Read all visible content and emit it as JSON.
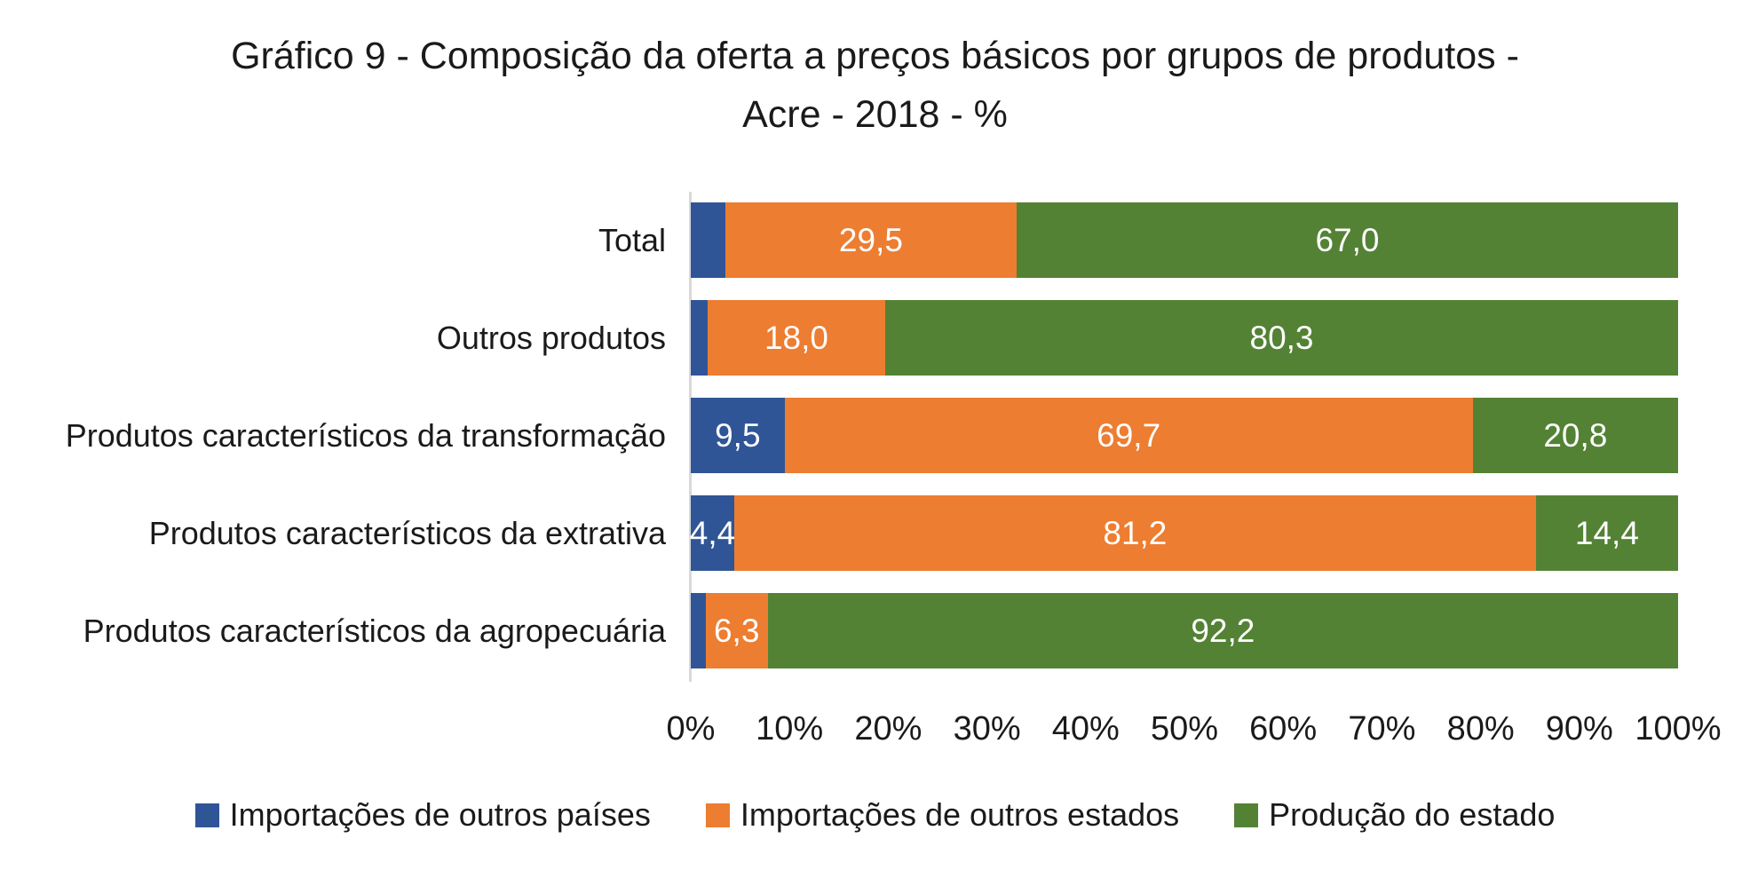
{
  "title": {
    "lines": [
      "Gráfico 9 - Composição da oferta a preços básicos por grupos de produtos -",
      "Acre - 2018 - %"
    ]
  },
  "colors": {
    "imports_other_countries": "#2F5597",
    "imports_other_states": "#ED7D31",
    "state_production": "#548235",
    "axis_line": "#D9D9D9",
    "text": "#1a1a1a",
    "bar_label_text": "#ffffff"
  },
  "chart_data": {
    "type": "bar",
    "orientation": "horizontal",
    "stacked": true,
    "title": "Gráfico 9 - Composição da oferta a preços básicos por grupos de produtos - Acre - 2018 - %",
    "unit": "%",
    "xlim": [
      0,
      100
    ],
    "grid": false,
    "legend_position": "bottom",
    "x_ticks": [
      "0%",
      "10%",
      "20%",
      "30%",
      "40%",
      "50%",
      "60%",
      "70%",
      "80%",
      "90%",
      "100%"
    ],
    "categories": [
      "Total",
      "Outros produtos",
      "Produtos característicos da transformação",
      "Produtos característicos da extrativa",
      "Produtos característicos da agropecuária"
    ],
    "series": [
      {
        "name": "Importações de outros países",
        "values": [
          3.5,
          1.7,
          9.5,
          4.4,
          1.5
        ]
      },
      {
        "name": "Importações de outros estados",
        "values": [
          29.5,
          18.0,
          69.7,
          81.2,
          6.3
        ]
      },
      {
        "name": "Produção do estado",
        "values": [
          67.0,
          80.3,
          20.8,
          14.4,
          92.2
        ]
      }
    ]
  },
  "rows": [
    {
      "label": "Total",
      "segments": [
        {
          "w": 3.5,
          "text": ""
        },
        {
          "w": 29.5,
          "text": "29,5"
        },
        {
          "w": 67.0,
          "text": "67,0"
        }
      ]
    },
    {
      "label": "Outros produtos",
      "segments": [
        {
          "w": 1.7,
          "text": ""
        },
        {
          "w": 18.0,
          "text": "18,0"
        },
        {
          "w": 80.3,
          "text": "80,3"
        }
      ]
    },
    {
      "label": "Produtos característicos da transformação",
      "segments": [
        {
          "w": 9.5,
          "text": "9,5"
        },
        {
          "w": 69.7,
          "text": "69,7"
        },
        {
          "w": 20.8,
          "text": "20,8"
        }
      ]
    },
    {
      "label": "Produtos característicos da extrativa",
      "segments": [
        {
          "w": 4.4,
          "text": "4,4"
        },
        {
          "w": 81.2,
          "text": "81,2"
        },
        {
          "w": 14.4,
          "text": "14,4"
        }
      ]
    },
    {
      "label": "Produtos característicos da agropecuária",
      "segments": [
        {
          "w": 1.5,
          "text": ""
        },
        {
          "w": 6.3,
          "text": "6,3"
        },
        {
          "w": 92.2,
          "text": "92,2"
        }
      ]
    }
  ],
  "legend": {
    "items": [
      {
        "label": "Importações de outros países"
      },
      {
        "label": "Importações de outros estados"
      },
      {
        "label": "Produção do estado"
      }
    ]
  }
}
